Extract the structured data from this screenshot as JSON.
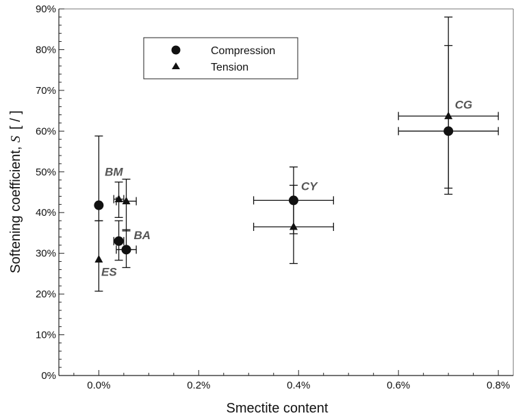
{
  "chart_data": {
    "type": "scatter",
    "title": "",
    "xlabel": "Smectite content",
    "ylabel": "Softening coefficient, ",
    "ylabel_symbol": "S",
    "ylabel_unit": "[ / ]",
    "xlim": [
      -0.0008,
      0.0083
    ],
    "ylim": [
      0,
      0.9
    ],
    "x_ticks": [
      0,
      0.002,
      0.004,
      0.006,
      0.008
    ],
    "x_tick_labels": [
      "0.0%",
      "0.2%",
      "0.4%",
      "0.6%",
      "0.8%"
    ],
    "y_ticks": [
      0,
      0.1,
      0.2,
      0.3,
      0.4,
      0.5,
      0.6,
      0.7,
      0.8,
      0.9
    ],
    "y_tick_labels": [
      "0%",
      "10%",
      "20%",
      "30%",
      "40%",
      "50%",
      "60%",
      "70%",
      "80%",
      "90%"
    ],
    "grid": false,
    "legend_position": "top-left",
    "series": [
      {
        "name": "Compression",
        "marker": "circle",
        "points": [
          {
            "x": 0.0,
            "y": 0.418,
            "y_err": [
              0.38,
              0.588
            ]
          },
          {
            "x": 0.0004,
            "y": 0.33,
            "y_err": [
              0.283,
              0.38
            ],
            "x_err": [
              0.0003,
              0.0005
            ]
          },
          {
            "x": 0.00055,
            "y": 0.309,
            "y_err": [
              0.265,
              0.358
            ],
            "x_err": [
              0.00035,
              0.00075
            ]
          },
          {
            "x": 0.0039,
            "y": 0.43,
            "y_err": [
              0.348,
              0.512
            ],
            "x_err": [
              0.0031,
              0.0047
            ]
          },
          {
            "x": 0.007,
            "y": 0.6,
            "y_err": [
              0.445,
              0.81
            ],
            "x_err": [
              0.006,
              0.008
            ]
          }
        ]
      },
      {
        "name": "Tension",
        "marker": "triangle",
        "points": [
          {
            "x": 0.0,
            "y": 0.285,
            "y_err": [
              0.207,
              0.38
            ]
          },
          {
            "x": 0.0004,
            "y": 0.433,
            "y_err": [
              0.388,
              0.475
            ],
            "x_err": [
              0.0003,
              0.0005
            ]
          },
          {
            "x": 0.00055,
            "y": 0.428,
            "y_err": [
              0.355,
              0.482
            ],
            "x_err": [
              0.00035,
              0.00075
            ]
          },
          {
            "x": 0.0039,
            "y": 0.365,
            "y_err": [
              0.275,
              0.467
            ],
            "x_err": [
              0.0031,
              0.0047
            ]
          },
          {
            "x": 0.007,
            "y": 0.637,
            "y_err": [
              0.46,
              0.88
            ],
            "x_err": [
              0.006,
              0.008
            ]
          }
        ]
      }
    ],
    "annotations": [
      {
        "text": "BM",
        "x": 0.00012,
        "y": 0.49
      },
      {
        "text": "BA",
        "x": 0.0007,
        "y": 0.335
      },
      {
        "text": "ES",
        "x": 5e-05,
        "y": 0.245
      },
      {
        "text": "CY",
        "x": 0.00405,
        "y": 0.455
      },
      {
        "text": "CG",
        "x": 0.00713,
        "y": 0.655
      }
    ]
  }
}
